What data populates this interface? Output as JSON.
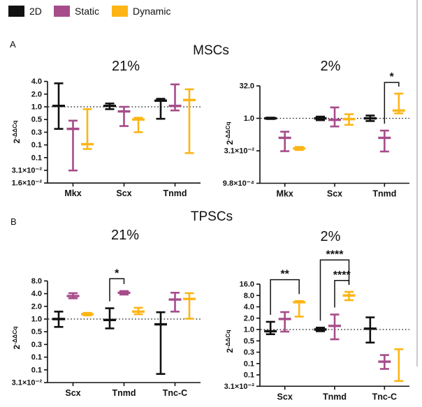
{
  "figure": {
    "legend": [
      {
        "label": "2D",
        "color": "#111111"
      },
      {
        "label": "Static",
        "color": "#A64C8A"
      },
      {
        "label": "Dynamic",
        "color": "#FDB515"
      }
    ],
    "panel_a_letter": "A",
    "panel_b_letter": "B",
    "section_a_title": "MSCs",
    "section_b_title": "TPSCs"
  },
  "chart_data": [
    {
      "id": "mscs-21",
      "group": "MSCs",
      "title": "21%",
      "type": "errorbar",
      "yscale": "log2",
      "ylabel_base": "2",
      "ylabel_sup": "-ΔΔCq",
      "reference_line": 1.0,
      "grid": false,
      "yticks": [
        {
          "value": 4,
          "label": "4.0"
        },
        {
          "value": 2,
          "label": "2.0"
        },
        {
          "value": 1,
          "label": "1.0"
        },
        {
          "value": 0.5,
          "label": "0.5"
        },
        {
          "value": 0.25,
          "label": "0.3"
        },
        {
          "value": 0.125,
          "label": "0.1"
        },
        {
          "value": 0.0625,
          "label": "0.1"
        },
        {
          "value": 0.03125,
          "label": "3.1×10⁻²"
        },
        {
          "value": 0.015625,
          "label": "1.6×10⁻²"
        }
      ],
      "categories": [
        "Mkx",
        "Scx",
        "Tnmd"
      ],
      "series": [
        {
          "name": "2D",
          "color": "#111111",
          "points": [
            {
              "mean": 1.05,
              "lo": 0.3,
              "hi": 3.6
            },
            {
              "mean": 1.05,
              "lo": 0.88,
              "hi": 1.2
            },
            {
              "mean": 1.4,
              "lo": 0.52,
              "hi": 1.55
            }
          ]
        },
        {
          "name": "Static",
          "color": "#A64C8A",
          "points": [
            {
              "mean": 0.3,
              "lo": 0.031,
              "hi": 0.47
            },
            {
              "mean": 0.78,
              "lo": 0.35,
              "hi": 1.0
            },
            {
              "mean": 1.05,
              "lo": 0.82,
              "hi": 3.4
            }
          ]
        },
        {
          "name": "Dynamic",
          "color": "#FDB515",
          "points": [
            {
              "mean": 0.13,
              "lo": 0.1,
              "hi": 0.88
            },
            {
              "mean": 0.5,
              "lo": 0.25,
              "hi": 0.55
            },
            {
              "mean": 1.45,
              "lo": 0.08,
              "hi": 2.6
            }
          ]
        }
      ],
      "significance": []
    },
    {
      "id": "mscs-2",
      "group": "MSCs",
      "title": "2%",
      "type": "errorbar",
      "yscale": "log2",
      "ylabel_base": "2",
      "ylabel_sup": "-ΔΔCq",
      "reference_line": 1.0,
      "grid": false,
      "yticks": [
        {
          "value": 32,
          "label": "32.0"
        },
        {
          "value": 1,
          "label": "1.0"
        },
        {
          "value": 0.03125,
          "label": "3.1×10⁻²"
        },
        {
          "value": 0.0009765625,
          "label": "9.8×10⁻⁴"
        }
      ],
      "categories": [
        "Mkx",
        "Scx",
        "Tnmd"
      ],
      "series": [
        {
          "name": "2D",
          "color": "#111111",
          "points": [
            {
              "mean": 1.0,
              "lo": 0.93,
              "hi": 1.08
            },
            {
              "mean": 1.0,
              "lo": 0.82,
              "hi": 1.2
            },
            {
              "mean": 1.0,
              "lo": 0.75,
              "hi": 1.35
            }
          ]
        },
        {
          "name": "Static",
          "color": "#A64C8A",
          "points": [
            {
              "mean": 0.125,
              "lo": 0.03,
              "hi": 0.24
            },
            {
              "mean": 0.85,
              "lo": 0.42,
              "hi": 3.2
            },
            {
              "mean": 0.125,
              "lo": 0.029,
              "hi": 0.27
            }
          ]
        },
        {
          "name": "Dynamic",
          "color": "#FDB515",
          "points": [
            {
              "mean": 0.04,
              "lo": 0.034,
              "hi": 0.047
            },
            {
              "mean": 0.92,
              "lo": 0.5,
              "hi": 1.55
            },
            {
              "mean": 2.3,
              "lo": 1.7,
              "hi": 14.0
            }
          ]
        }
      ],
      "significance": [
        {
          "label": "*",
          "from": {
            "category": "Tnmd",
            "series": "Static"
          },
          "to": {
            "category": "Tnmd",
            "series": "Dynamic"
          },
          "top_value": 46
        }
      ]
    },
    {
      "id": "tpscs-21",
      "group": "TPSCs",
      "title": "21%",
      "type": "errorbar",
      "yscale": "log2",
      "ylabel_base": "2",
      "ylabel_sup": "-ΔΔCq",
      "reference_line": 1.0,
      "grid": false,
      "yticks": [
        {
          "value": 8,
          "label": "8.0"
        },
        {
          "value": 4,
          "label": "4.0"
        },
        {
          "value": 2,
          "label": "2.0"
        },
        {
          "value": 1,
          "label": "1.0"
        },
        {
          "value": 0.5,
          "label": "0.5"
        },
        {
          "value": 0.25,
          "label": "0.3"
        },
        {
          "value": 0.125,
          "label": "0.1"
        },
        {
          "value": 0.0625,
          "label": "0.1"
        },
        {
          "value": 0.03125,
          "label": "3.1×10⁻²"
        }
      ],
      "categories": [
        "Scx",
        "Tnmd",
        "Tnc-C"
      ],
      "series": [
        {
          "name": "2D",
          "color": "#111111",
          "points": [
            {
              "mean": 1.0,
              "lo": 0.65,
              "hi": 1.5
            },
            {
              "mean": 0.95,
              "lo": 0.6,
              "hi": 1.8
            },
            {
              "mean": 0.75,
              "lo": 0.05,
              "hi": 1.45
            }
          ]
        },
        {
          "name": "Static",
          "color": "#A64C8A",
          "points": [
            {
              "mean": 3.5,
              "lo": 3.1,
              "hi": 4.1
            },
            {
              "mean": 4.2,
              "lo": 3.8,
              "hi": 4.6
            },
            {
              "mean": 2.9,
              "lo": 1.5,
              "hi": 4.2
            }
          ]
        },
        {
          "name": "Dynamic",
          "color": "#FDB515",
          "points": [
            {
              "mean": 1.3,
              "lo": 1.22,
              "hi": 1.4
            },
            {
              "mean": 1.5,
              "lo": 1.3,
              "hi": 1.85
            },
            {
              "mean": 3.0,
              "lo": 1.02,
              "hi": 4.1
            }
          ]
        }
      ],
      "significance": [
        {
          "label": "*",
          "from": {
            "category": "Tnmd",
            "series": "2D"
          },
          "to": {
            "category": "Tnmd",
            "series": "Static"
          },
          "top_value": 9
        }
      ]
    },
    {
      "id": "tpscs-2",
      "group": "TPSCs",
      "title": "2%",
      "type": "errorbar",
      "yscale": "log2",
      "ylabel_base": "2",
      "ylabel_sup": "-ΔΔCq",
      "reference_line": 1.0,
      "grid": false,
      "yticks": [
        {
          "value": 16,
          "label": "16.0"
        },
        {
          "value": 8,
          "label": "8.0"
        },
        {
          "value": 4,
          "label": "4.0"
        },
        {
          "value": 2,
          "label": "2.0"
        },
        {
          "value": 1,
          "label": "1.0"
        },
        {
          "value": 0.5,
          "label": "0.5"
        },
        {
          "value": 0.25,
          "label": "0.3"
        },
        {
          "value": 0.125,
          "label": "0.1"
        },
        {
          "value": 0.0625,
          "label": "0.1"
        },
        {
          "value": 0.03125,
          "label": "3.1×10⁻²"
        }
      ],
      "categories": [
        "Scx",
        "Tnmd",
        "Tnc-C"
      ],
      "series": [
        {
          "name": "2D",
          "color": "#111111",
          "points": [
            {
              "mean": 0.9,
              "lo": 0.75,
              "hi": 1.6
            },
            {
              "mean": 1.0,
              "lo": 0.9,
              "hi": 1.12
            },
            {
              "mean": 1.05,
              "lo": 0.45,
              "hi": 2.1
            }
          ]
        },
        {
          "name": "Static",
          "color": "#A64C8A",
          "points": [
            {
              "mean": 1.9,
              "lo": 0.88,
              "hi": 2.9
            },
            {
              "mean": 1.25,
              "lo": 0.55,
              "hi": 2.5
            },
            {
              "mean": 0.14,
              "lo": 0.09,
              "hi": 0.21
            }
          ]
        },
        {
          "name": "Dynamic",
          "color": "#FDB515",
          "points": [
            {
              "mean": 5.3,
              "lo": 2.2,
              "hi": 5.7
            },
            {
              "mean": 8.0,
              "lo": 6.0,
              "hi": 10.0
            },
            {
              "mean": null,
              "lo": 0.043,
              "hi": 0.3
            }
          ]
        }
      ],
      "significance": [
        {
          "label": "**",
          "from": {
            "category": "Scx",
            "series": "2D"
          },
          "to": {
            "category": "Scx",
            "series": "Dynamic"
          },
          "top_value": 21
        },
        {
          "label": "****",
          "from": {
            "category": "Tnmd",
            "series": "2D"
          },
          "to": {
            "category": "Tnmd",
            "series": "Dynamic"
          },
          "top_value": 70
        },
        {
          "label": "****",
          "from": {
            "category": "Tnmd",
            "series": "Static"
          },
          "to": {
            "category": "Tnmd",
            "series": "Dynamic"
          },
          "top_value": 20
        }
      ]
    }
  ]
}
